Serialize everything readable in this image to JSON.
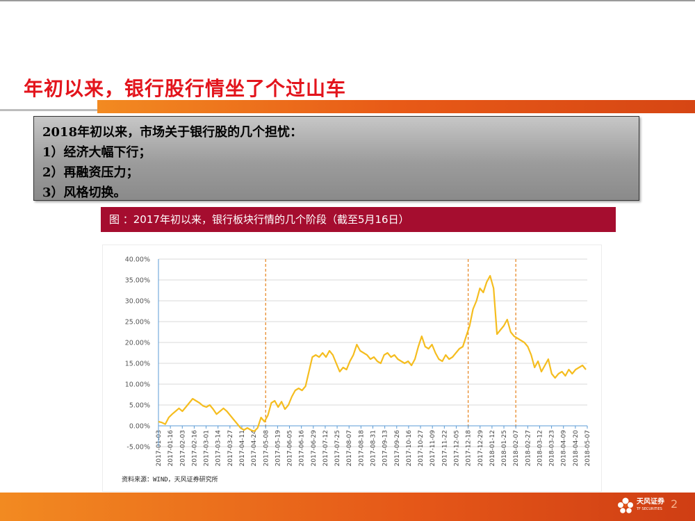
{
  "slide": {
    "title": "年初以来，银行股行情坐了个过山车",
    "concern_lines": [
      "2018年初以来，市场关于银行股的几个担忧：",
      "1）经济大幅下行；",
      "2）再融资压力；",
      "3）风格切换。"
    ],
    "figure_caption": "图 ：2017年初以来，银行板块行情的几个阶段（截至5月16日）",
    "source": "资料来源：WIND，天风证券研究所",
    "logo_text": "天风证券",
    "logo_subtext": "TF SECURITIES",
    "page_number": "2"
  },
  "colors": {
    "title_red": "#e3141c",
    "caption_bg": "#a50d2f",
    "line": "#f5bd1f",
    "divider": "#e88a2a",
    "axis": "#5b9bd5"
  },
  "chart_data": {
    "type": "line",
    "title": "",
    "xlabel": "",
    "ylabel": "",
    "ylim": [
      -5,
      40
    ],
    "y_ticks": [
      "-5.00%",
      "0.00%",
      "5.00%",
      "10.00%",
      "15.00%",
      "20.00%",
      "25.00%",
      "30.00%",
      "35.00%",
      "40.00%"
    ],
    "x_tick_labels": [
      "2017-01-03",
      "2017-01-16",
      "2017-02-03",
      "2017-02-16",
      "2017-03-01",
      "2017-03-14",
      "2017-03-27",
      "2017-04-11",
      "2017-04-24",
      "2017-05-08",
      "2017-05-19",
      "2017-06-05",
      "2017-06-16",
      "2017-06-29",
      "2017-07-12",
      "2017-07-25",
      "2017-08-07",
      "2017-08-18",
      "2017-08-31",
      "2017-09-13",
      "2017-09-26",
      "2017-10-16",
      "2017-10-27",
      "2017-11-09",
      "2017-11-22",
      "2017-12-05",
      "2017-12-18",
      "2017-12-29",
      "2018-01-12",
      "2018-01-25",
      "2018-02-07",
      "2018-02-27",
      "2018-03-12",
      "2018-03-23",
      "2018-04-09",
      "2018-04-20",
      "2018-05-07"
    ],
    "grid": "horizontal",
    "vertical_markers": [
      "2017-05-08",
      "2017-12-18",
      "2018-02-07"
    ],
    "series": [
      {
        "values": [
          [
            0,
            1.0
          ],
          [
            1,
            0.8
          ],
          [
            2,
            0.4
          ],
          [
            3,
            2.0
          ],
          [
            4,
            2.8
          ],
          [
            5,
            3.5
          ],
          [
            6,
            4.2
          ],
          [
            7,
            3.5
          ],
          [
            8,
            4.5
          ],
          [
            9,
            5.5
          ],
          [
            10,
            6.5
          ],
          [
            11,
            6.0
          ],
          [
            12,
            5.5
          ],
          [
            13,
            4.8
          ],
          [
            14,
            4.5
          ],
          [
            15,
            5.0
          ],
          [
            16,
            4.0
          ],
          [
            17,
            2.8
          ],
          [
            18,
            3.5
          ],
          [
            19,
            4.2
          ],
          [
            20,
            3.5
          ],
          [
            21,
            2.5
          ],
          [
            22,
            1.5
          ],
          [
            23,
            0.5
          ],
          [
            24,
            -0.5
          ],
          [
            25,
            -1.0
          ],
          [
            26,
            -0.5
          ],
          [
            27,
            -1.0
          ],
          [
            28,
            -1.3
          ],
          [
            29,
            -0.5
          ],
          [
            30,
            2.0
          ],
          [
            31,
            1.0
          ],
          [
            32,
            2.5
          ],
          [
            33,
            5.5
          ],
          [
            34,
            6.0
          ],
          [
            35,
            4.5
          ],
          [
            36,
            5.8
          ],
          [
            37,
            4.0
          ],
          [
            38,
            5.0
          ],
          [
            39,
            7.0
          ],
          [
            40,
            8.5
          ],
          [
            41,
            9.0
          ],
          [
            42,
            8.5
          ],
          [
            43,
            9.5
          ],
          [
            44,
            13.0
          ],
          [
            45,
            16.5
          ],
          [
            46,
            17.0
          ],
          [
            47,
            16.5
          ],
          [
            48,
            17.5
          ],
          [
            49,
            16.5
          ],
          [
            50,
            18.0
          ],
          [
            51,
            17.0
          ],
          [
            52,
            15.0
          ],
          [
            53,
            13.0
          ],
          [
            54,
            14.0
          ],
          [
            55,
            13.5
          ],
          [
            56,
            15.5
          ],
          [
            57,
            17.0
          ],
          [
            58,
            19.5
          ],
          [
            59,
            18.0
          ],
          [
            60,
            17.5
          ],
          [
            61,
            17.0
          ],
          [
            62,
            16.0
          ],
          [
            63,
            16.5
          ],
          [
            64,
            15.5
          ],
          [
            65,
            15.0
          ],
          [
            66,
            17.0
          ],
          [
            67,
            17.5
          ],
          [
            68,
            16.5
          ],
          [
            69,
            17.0
          ],
          [
            70,
            16.0
          ],
          [
            71,
            15.5
          ],
          [
            72,
            15.0
          ],
          [
            73,
            15.5
          ],
          [
            74,
            14.5
          ],
          [
            75,
            16.0
          ],
          [
            76,
            19.0
          ],
          [
            77,
            21.5
          ],
          [
            78,
            19.0
          ],
          [
            79,
            18.5
          ],
          [
            80,
            19.5
          ],
          [
            81,
            17.5
          ],
          [
            82,
            16.0
          ],
          [
            83,
            15.5
          ],
          [
            84,
            17.0
          ],
          [
            85,
            16.0
          ],
          [
            86,
            16.5
          ],
          [
            87,
            17.5
          ],
          [
            88,
            18.5
          ],
          [
            89,
            19.0
          ],
          [
            90,
            21.5
          ],
          [
            91,
            24.0
          ],
          [
            92,
            28.0
          ],
          [
            93,
            30.0
          ],
          [
            94,
            33.0
          ],
          [
            95,
            32.0
          ],
          [
            96,
            34.5
          ],
          [
            97,
            36.0
          ],
          [
            98,
            33.0
          ],
          [
            99,
            22.0
          ],
          [
            100,
            23.0
          ],
          [
            101,
            24.0
          ],
          [
            102,
            25.5
          ],
          [
            103,
            22.5
          ],
          [
            104,
            21.5
          ],
          [
            105,
            21.0
          ],
          [
            106,
            20.5
          ],
          [
            107,
            20.0
          ],
          [
            108,
            19.0
          ],
          [
            109,
            17.0
          ],
          [
            110,
            14.0
          ],
          [
            111,
            15.5
          ],
          [
            112,
            13.0
          ],
          [
            113,
            14.5
          ],
          [
            114,
            16.0
          ],
          [
            115,
            12.5
          ],
          [
            116,
            11.5
          ],
          [
            117,
            12.5
          ],
          [
            118,
            13.0
          ],
          [
            119,
            12.0
          ],
          [
            120,
            13.5
          ],
          [
            121,
            12.5
          ],
          [
            122,
            13.5
          ],
          [
            123,
            14.0
          ],
          [
            124,
            14.5
          ],
          [
            125,
            13.5
          ]
        ]
      }
    ]
  }
}
